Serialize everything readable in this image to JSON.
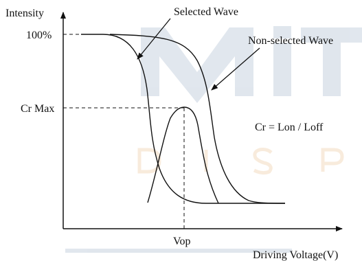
{
  "watermark": {
    "text_main": "MiT",
    "text_sub": "DISP",
    "color": "#c8d3e0",
    "sub_color": "#f3dcc0"
  },
  "labels": {
    "y_axis": "Intensity",
    "x_axis": "Driving Voltage(V)",
    "tick_100": "100%",
    "tick_crmax": "Cr Max",
    "tick_vop": "Vop",
    "selected_wave": "Selected Wave",
    "non_selected_wave": "Non-selected Wave",
    "formula": "Cr = Lon / Loff"
  },
  "colors": {
    "line": "#111111",
    "background": "#ffffff",
    "watermark_bar": "#c8d3e0"
  }
}
